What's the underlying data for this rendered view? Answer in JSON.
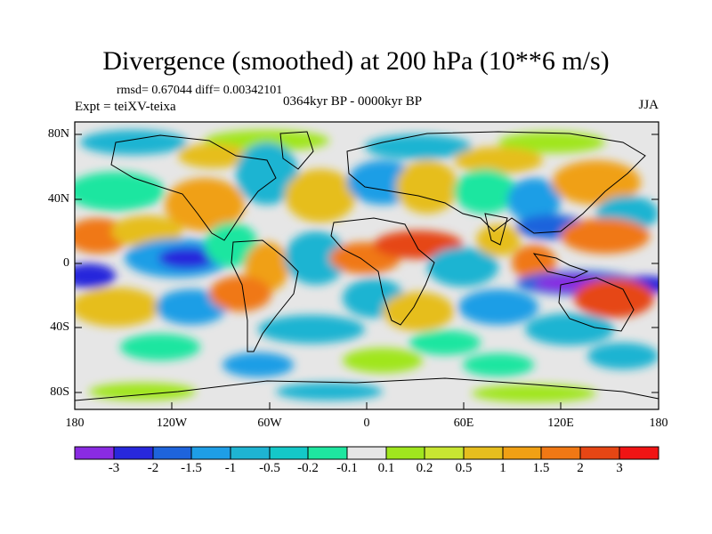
{
  "header": {
    "title": "Divergence (smoothed) at 200 hPa (10**6 m/s)",
    "stats": "rmsd= 0.67044 diff= 0.00342101",
    "experiment": "Expt = teiXV-teixa",
    "period": "0364kyr BP - 0000kyr BP",
    "season": "JJA"
  },
  "map": {
    "lat_labels": [
      "80N",
      "40N",
      "0",
      "40S",
      "80S"
    ],
    "lon_labels": [
      "180",
      "120W",
      "60W",
      "0",
      "60E",
      "120E",
      "180"
    ]
  },
  "colorbar": {
    "labels": [
      "-3",
      "-2",
      "-1.5",
      "-1",
      "-0.5",
      "-0.2",
      "-0.1",
      "0.1",
      "0.2",
      "0.5",
      "1",
      "1.5",
      "2",
      "3"
    ],
    "colors": [
      "#8a2be2",
      "#2828dc",
      "#1e64dc",
      "#1e9ee6",
      "#1eb4d2",
      "#14c8c8",
      "#1ee6a0",
      "#e6e6e6",
      "#a0e61e",
      "#c8e632",
      "#e6be1e",
      "#f0a014",
      "#f07814",
      "#e64614",
      "#f01414"
    ]
  },
  "colors": {
    "land_outline": "#000000",
    "background_fill": "#e6e6e6"
  }
}
